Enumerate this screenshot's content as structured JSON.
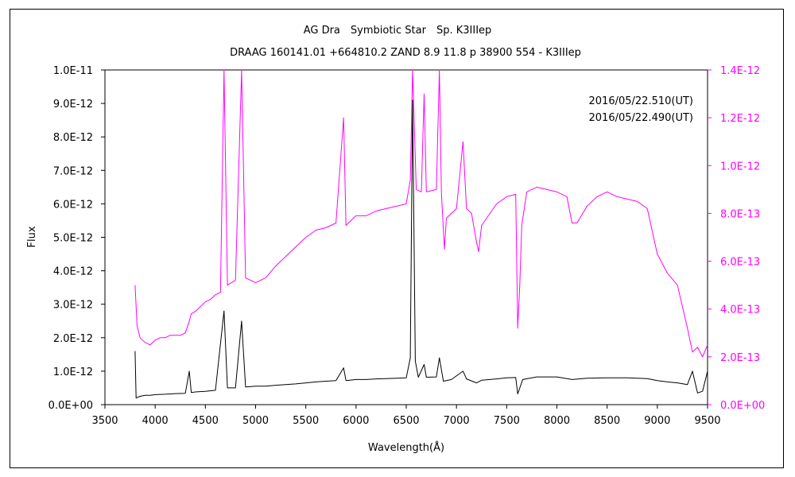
{
  "chart_data": {
    "type": "line",
    "title": "AG Dra　Symbiotic Star　Sp. K3IIIep",
    "subtitle": "DRAAG 160141.01 +664810.2 ZAND 8.9 11.8 p 38900 554 - K3IIIep",
    "xlabel": "Wavelength(Å)",
    "ylabel": "Flux",
    "xlim": [
      3500,
      9500
    ],
    "ylim_left": [
      0,
      1e-11
    ],
    "ylim_right": [
      0,
      1.4e-12
    ],
    "x_ticks": [
      "3500",
      "4000",
      "4500",
      "5000",
      "5500",
      "6000",
      "6500",
      "7000",
      "7500",
      "8000",
      "8500",
      "9000",
      "9500"
    ],
    "y_ticks_left": [
      "0.0E+00",
      "1.0E-12",
      "2.0E-12",
      "3.0E-12",
      "4.0E-12",
      "5.0E-12",
      "6.0E-12",
      "7.0E-12",
      "8.0E-12",
      "9.0E-12",
      "1.0E-11"
    ],
    "y_ticks_right": [
      "0.0E+00",
      "2.0E-13",
      "4.0E-13",
      "6.0E-13",
      "8.0E-13",
      "1.0E-12",
      "1.2E-12",
      "1.4E-12"
    ],
    "legend_placement": "top-right",
    "grid": false,
    "series": [
      {
        "name": "2016/05/22.510(UT)",
        "axis": "right",
        "color": "#ff00ff",
        "points": [
          [
            3800,
            5e-13
          ],
          [
            3820,
            3.3e-13
          ],
          [
            3850,
            2.8e-13
          ],
          [
            3900,
            2.6e-13
          ],
          [
            3950,
            2.5e-13
          ],
          [
            4000,
            2.7e-13
          ],
          [
            4050,
            2.8e-13
          ],
          [
            4100,
            2.8e-13
          ],
          [
            4150,
            2.9e-13
          ],
          [
            4200,
            2.9e-13
          ],
          [
            4250,
            2.9e-13
          ],
          [
            4300,
            3e-13
          ],
          [
            4340,
            3.5e-13
          ],
          [
            4360,
            3.8e-13
          ],
          [
            4400,
            3.9e-13
          ],
          [
            4450,
            4.1e-13
          ],
          [
            4500,
            4.3e-13
          ],
          [
            4550,
            4.4e-13
          ],
          [
            4600,
            4.6e-13
          ],
          [
            4650,
            4.7e-13
          ],
          [
            4686,
            1.4e-12
          ],
          [
            4720,
            5e-13
          ],
          [
            4800,
            5.2e-13
          ],
          [
            4861,
            1.4e-12
          ],
          [
            4900,
            5.3e-13
          ],
          [
            5000,
            5.1e-13
          ],
          [
            5100,
            5.3e-13
          ],
          [
            5200,
            5.8e-13
          ],
          [
            5300,
            6.2e-13
          ],
          [
            5400,
            6.6e-13
          ],
          [
            5500,
            7e-13
          ],
          [
            5600,
            7.3e-13
          ],
          [
            5700,
            7.4e-13
          ],
          [
            5800,
            7.6e-13
          ],
          [
            5876,
            1.2e-12
          ],
          [
            5900,
            7.5e-13
          ],
          [
            6000,
            7.9e-13
          ],
          [
            6100,
            7.9e-13
          ],
          [
            6200,
            8.1e-13
          ],
          [
            6300,
            8.2e-13
          ],
          [
            6400,
            8.3e-13
          ],
          [
            6500,
            8.4e-13
          ],
          [
            6540,
            9.4e-13
          ],
          [
            6563,
            1.4e-12
          ],
          [
            6600,
            9e-13
          ],
          [
            6650,
            8.9e-13
          ],
          [
            6678,
            1.3e-12
          ],
          [
            6700,
            8.9e-13
          ],
          [
            6800,
            9e-13
          ],
          [
            6830,
            1.4e-12
          ],
          [
            6850,
            8.9e-13
          ],
          [
            6880,
            6.5e-13
          ],
          [
            6900,
            7.8e-13
          ],
          [
            7000,
            8.2e-13
          ],
          [
            7065,
            1.1e-12
          ],
          [
            7100,
            8.2e-13
          ],
          [
            7150,
            8e-13
          ],
          [
            7200,
            6.8e-13
          ],
          [
            7220,
            6.4e-13
          ],
          [
            7250,
            7.5e-13
          ],
          [
            7300,
            7.8e-13
          ],
          [
            7400,
            8.4e-13
          ],
          [
            7500,
            8.7e-13
          ],
          [
            7590,
            8.8e-13
          ],
          [
            7610,
            3.2e-13
          ],
          [
            7630,
            5e-13
          ],
          [
            7650,
            7.5e-13
          ],
          [
            7700,
            8.9e-13
          ],
          [
            7800,
            9.1e-13
          ],
          [
            7900,
            9e-13
          ],
          [
            8000,
            8.9e-13
          ],
          [
            8100,
            8.7e-13
          ],
          [
            8150,
            7.6e-13
          ],
          [
            8200,
            7.6e-13
          ],
          [
            8300,
            8.3e-13
          ],
          [
            8400,
            8.7e-13
          ],
          [
            8500,
            8.9e-13
          ],
          [
            8600,
            8.7e-13
          ],
          [
            8700,
            8.6e-13
          ],
          [
            8800,
            8.5e-13
          ],
          [
            8900,
            8.2e-13
          ],
          [
            9000,
            6.3e-13
          ],
          [
            9100,
            5.5e-13
          ],
          [
            9200,
            5e-13
          ],
          [
            9300,
            3.2e-13
          ],
          [
            9350,
            2.2e-13
          ],
          [
            9400,
            2.4e-13
          ],
          [
            9450,
            2e-13
          ],
          [
            9500,
            2.5e-13
          ]
        ]
      },
      {
        "name": "2016/05/22.490(UT)",
        "axis": "left",
        "color": "#000000",
        "points": [
          [
            3800,
            1.6e-12
          ],
          [
            3810,
            2e-13
          ],
          [
            3850,
            2.5e-13
          ],
          [
            3900,
            2.8e-13
          ],
          [
            3950,
            2.8e-13
          ],
          [
            4000,
            3e-13
          ],
          [
            4100,
            3.1e-13
          ],
          [
            4200,
            3.3e-13
          ],
          [
            4300,
            3.4e-13
          ],
          [
            4340,
            1e-12
          ],
          [
            4360,
            3.6e-13
          ],
          [
            4400,
            3.8e-13
          ],
          [
            4500,
            4e-13
          ],
          [
            4600,
            4.3e-13
          ],
          [
            4686,
            2.8e-12
          ],
          [
            4720,
            5e-13
          ],
          [
            4800,
            5e-13
          ],
          [
            4861,
            2.5e-12
          ],
          [
            4900,
            5.3e-13
          ],
          [
            5000,
            5.5e-13
          ],
          [
            5100,
            5.5e-13
          ],
          [
            5200,
            5.8e-13
          ],
          [
            5300,
            6e-13
          ],
          [
            5400,
            6.2e-13
          ],
          [
            5500,
            6.5e-13
          ],
          [
            5600,
            6.8e-13
          ],
          [
            5700,
            7e-13
          ],
          [
            5800,
            7.2e-13
          ],
          [
            5876,
            1.1e-12
          ],
          [
            5900,
            7.2e-13
          ],
          [
            6000,
            7.5e-13
          ],
          [
            6100,
            7.5e-13
          ],
          [
            6200,
            7.7e-13
          ],
          [
            6300,
            7.8e-13
          ],
          [
            6400,
            7.9e-13
          ],
          [
            6500,
            8e-13
          ],
          [
            6540,
            1.4e-12
          ],
          [
            6563,
            9.1e-12
          ],
          [
            6590,
            1.3e-12
          ],
          [
            6620,
            8.2e-13
          ],
          [
            6678,
            1.2e-12
          ],
          [
            6700,
            8.2e-13
          ],
          [
            6800,
            8.3e-13
          ],
          [
            6830,
            1.4e-12
          ],
          [
            6870,
            7e-13
          ],
          [
            6950,
            7.5e-13
          ],
          [
            7065,
            1e-12
          ],
          [
            7100,
            7.7e-13
          ],
          [
            7200,
            6.5e-13
          ],
          [
            7250,
            7.3e-13
          ],
          [
            7400,
            7.7e-13
          ],
          [
            7500,
            8e-13
          ],
          [
            7590,
            8.1e-13
          ],
          [
            7610,
            3.2e-13
          ],
          [
            7660,
            7.5e-13
          ],
          [
            7800,
            8.3e-13
          ],
          [
            8000,
            8.3e-13
          ],
          [
            8150,
            7.5e-13
          ],
          [
            8300,
            7.9e-13
          ],
          [
            8500,
            8e-13
          ],
          [
            8700,
            8e-13
          ],
          [
            8900,
            7.8e-13
          ],
          [
            9000,
            7.2e-13
          ],
          [
            9100,
            6.8e-13
          ],
          [
            9200,
            6.5e-13
          ],
          [
            9300,
            6e-13
          ],
          [
            9350,
            1e-12
          ],
          [
            9400,
            3.5e-13
          ],
          [
            9450,
            4e-13
          ],
          [
            9500,
            1e-12
          ]
        ]
      }
    ]
  }
}
